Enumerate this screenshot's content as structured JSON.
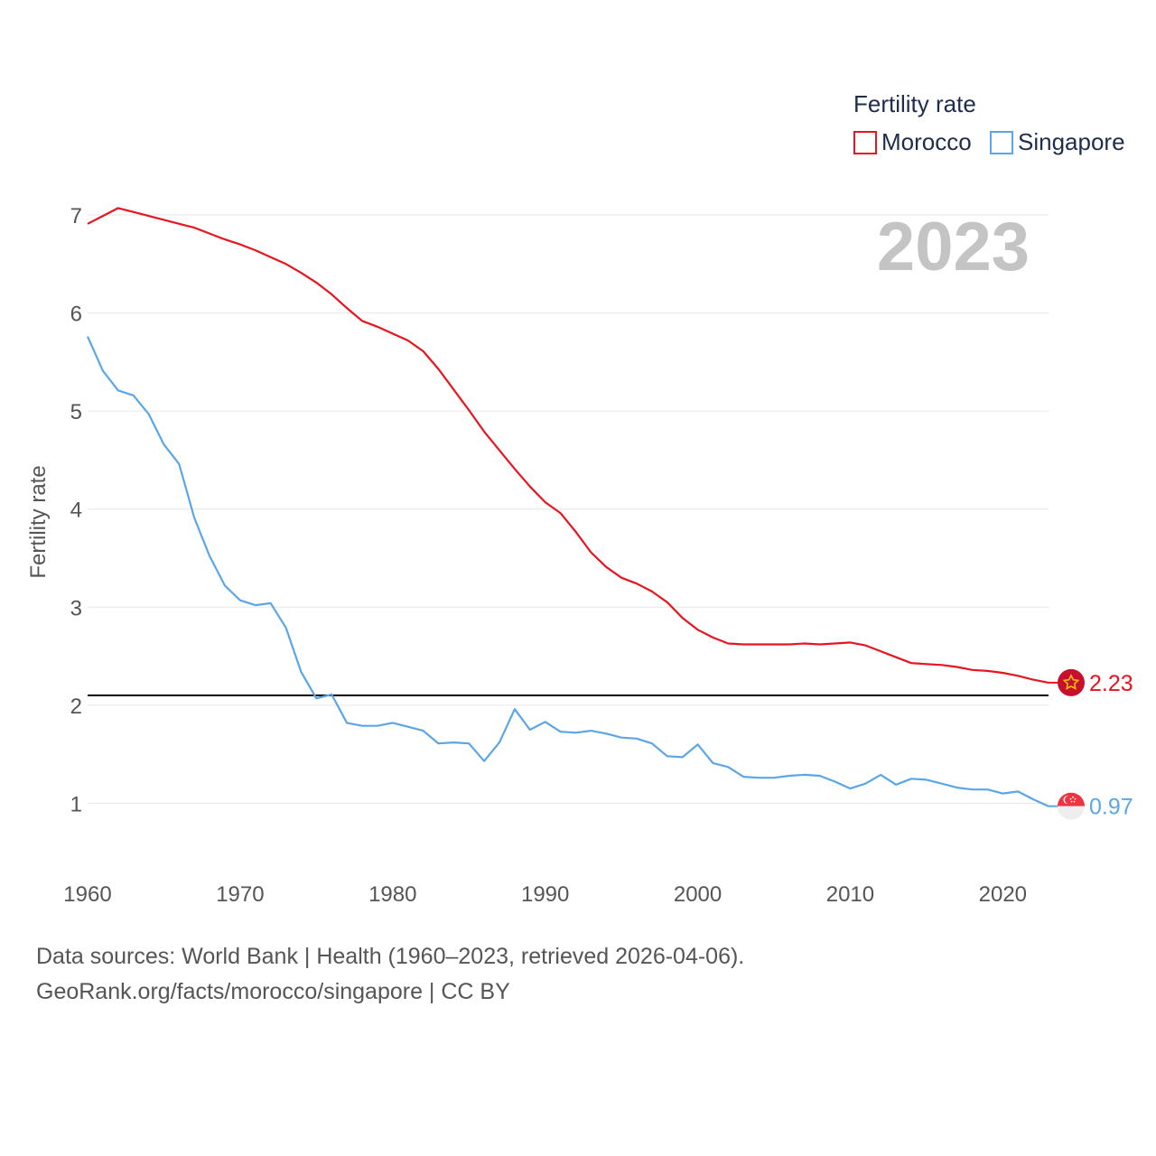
{
  "colors": {
    "morocco": "#e8141e",
    "singapore": "#5ba6e6",
    "reference_line": "#000000",
    "grid": "#e6e6e6"
  },
  "chart_data": {
    "type": "line",
    "title": "",
    "big_year_label": "2023",
    "legend_title": "Fertility rate",
    "xlabel": "",
    "ylabel": "Fertility rate",
    "xlim": [
      1960,
      2023
    ],
    "ylim": [
      0.35,
      7.35
    ],
    "x_ticks": [
      1960,
      1970,
      1980,
      1990,
      2000,
      2010,
      2020
    ],
    "y_ticks": [
      1,
      2,
      3,
      4,
      5,
      6,
      7
    ],
    "reference_line": 2.1,
    "x": [
      1960,
      1961,
      1962,
      1963,
      1964,
      1965,
      1966,
      1967,
      1968,
      1969,
      1970,
      1971,
      1972,
      1973,
      1974,
      1975,
      1976,
      1977,
      1978,
      1979,
      1980,
      1981,
      1982,
      1983,
      1984,
      1985,
      1986,
      1987,
      1988,
      1989,
      1990,
      1991,
      1992,
      1993,
      1994,
      1995,
      1996,
      1997,
      1998,
      1999,
      2000,
      2001,
      2002,
      2003,
      2004,
      2005,
      2006,
      2007,
      2008,
      2009,
      2010,
      2011,
      2012,
      2013,
      2014,
      2015,
      2016,
      2017,
      2018,
      2019,
      2020,
      2021,
      2022,
      2023
    ],
    "series": [
      {
        "name": "Morocco",
        "color": "#e8141e",
        "end_label": "2.23",
        "flag_icon": "morocco-flag-icon",
        "values": [
          6.91,
          6.99,
          7.07,
          7.03,
          6.99,
          6.95,
          6.91,
          6.87,
          6.81,
          6.75,
          6.7,
          6.64,
          6.57,
          6.5,
          6.41,
          6.31,
          6.19,
          6.05,
          5.92,
          5.86,
          5.79,
          5.72,
          5.61,
          5.43,
          5.22,
          5.01,
          4.79,
          4.6,
          4.41,
          4.23,
          4.07,
          3.96,
          3.77,
          3.56,
          3.41,
          3.3,
          3.24,
          3.16,
          3.05,
          2.89,
          2.77,
          2.69,
          2.63,
          2.62,
          2.62,
          2.62,
          2.62,
          2.63,
          2.62,
          2.63,
          2.64,
          2.61,
          2.55,
          2.49,
          2.43,
          2.42,
          2.41,
          2.39,
          2.36,
          2.35,
          2.33,
          2.3,
          2.26,
          2.23
        ]
      },
      {
        "name": "Singapore",
        "color": "#5ba6e6",
        "end_label": "0.97",
        "flag_icon": "singapore-flag-icon",
        "values": [
          5.76,
          5.41,
          5.21,
          5.16,
          4.97,
          4.66,
          4.46,
          3.91,
          3.52,
          3.22,
          3.07,
          3.02,
          3.04,
          2.79,
          2.34,
          2.07,
          2.11,
          1.82,
          1.79,
          1.79,
          1.82,
          1.78,
          1.74,
          1.61,
          1.62,
          1.61,
          1.43,
          1.62,
          1.96,
          1.75,
          1.83,
          1.73,
          1.72,
          1.74,
          1.71,
          1.67,
          1.66,
          1.61,
          1.48,
          1.47,
          1.6,
          1.41,
          1.37,
          1.27,
          1.26,
          1.26,
          1.28,
          1.29,
          1.28,
          1.22,
          1.15,
          1.2,
          1.29,
          1.19,
          1.25,
          1.24,
          1.2,
          1.16,
          1.14,
          1.14,
          1.1,
          1.12,
          1.04,
          0.97
        ]
      }
    ]
  },
  "footer": {
    "line1": "Data sources: World Bank | Health (1960–2023, retrieved 2026-04-06).",
    "line2": "GeoRank.org/facts/morocco/singapore | CC BY"
  }
}
